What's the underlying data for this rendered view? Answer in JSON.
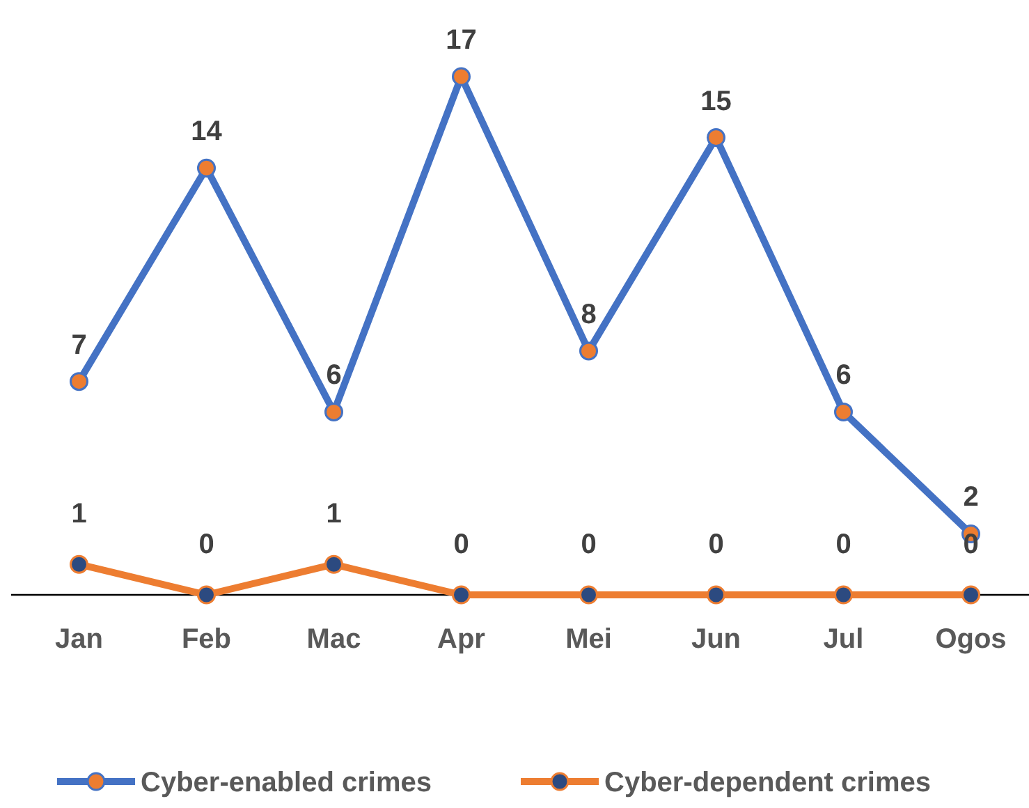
{
  "chart_data": {
    "type": "line",
    "categories": [
      "Jan",
      "Feb",
      "Mac",
      "Apr",
      "Mei",
      "Jun",
      "Jul",
      "Ogos"
    ],
    "series": [
      {
        "name": "Cyber-enabled crimes",
        "color": "#4472c4",
        "values": [
          7,
          14,
          6,
          17,
          8,
          15,
          6,
          2
        ]
      },
      {
        "name": "Cyber-dependent crimes",
        "color": "#ed7d31",
        "values": [
          1,
          0,
          1,
          0,
          0,
          0,
          0,
          0
        ]
      }
    ],
    "data_labels": true,
    "marker": "circle",
    "legend": "bottom"
  }
}
